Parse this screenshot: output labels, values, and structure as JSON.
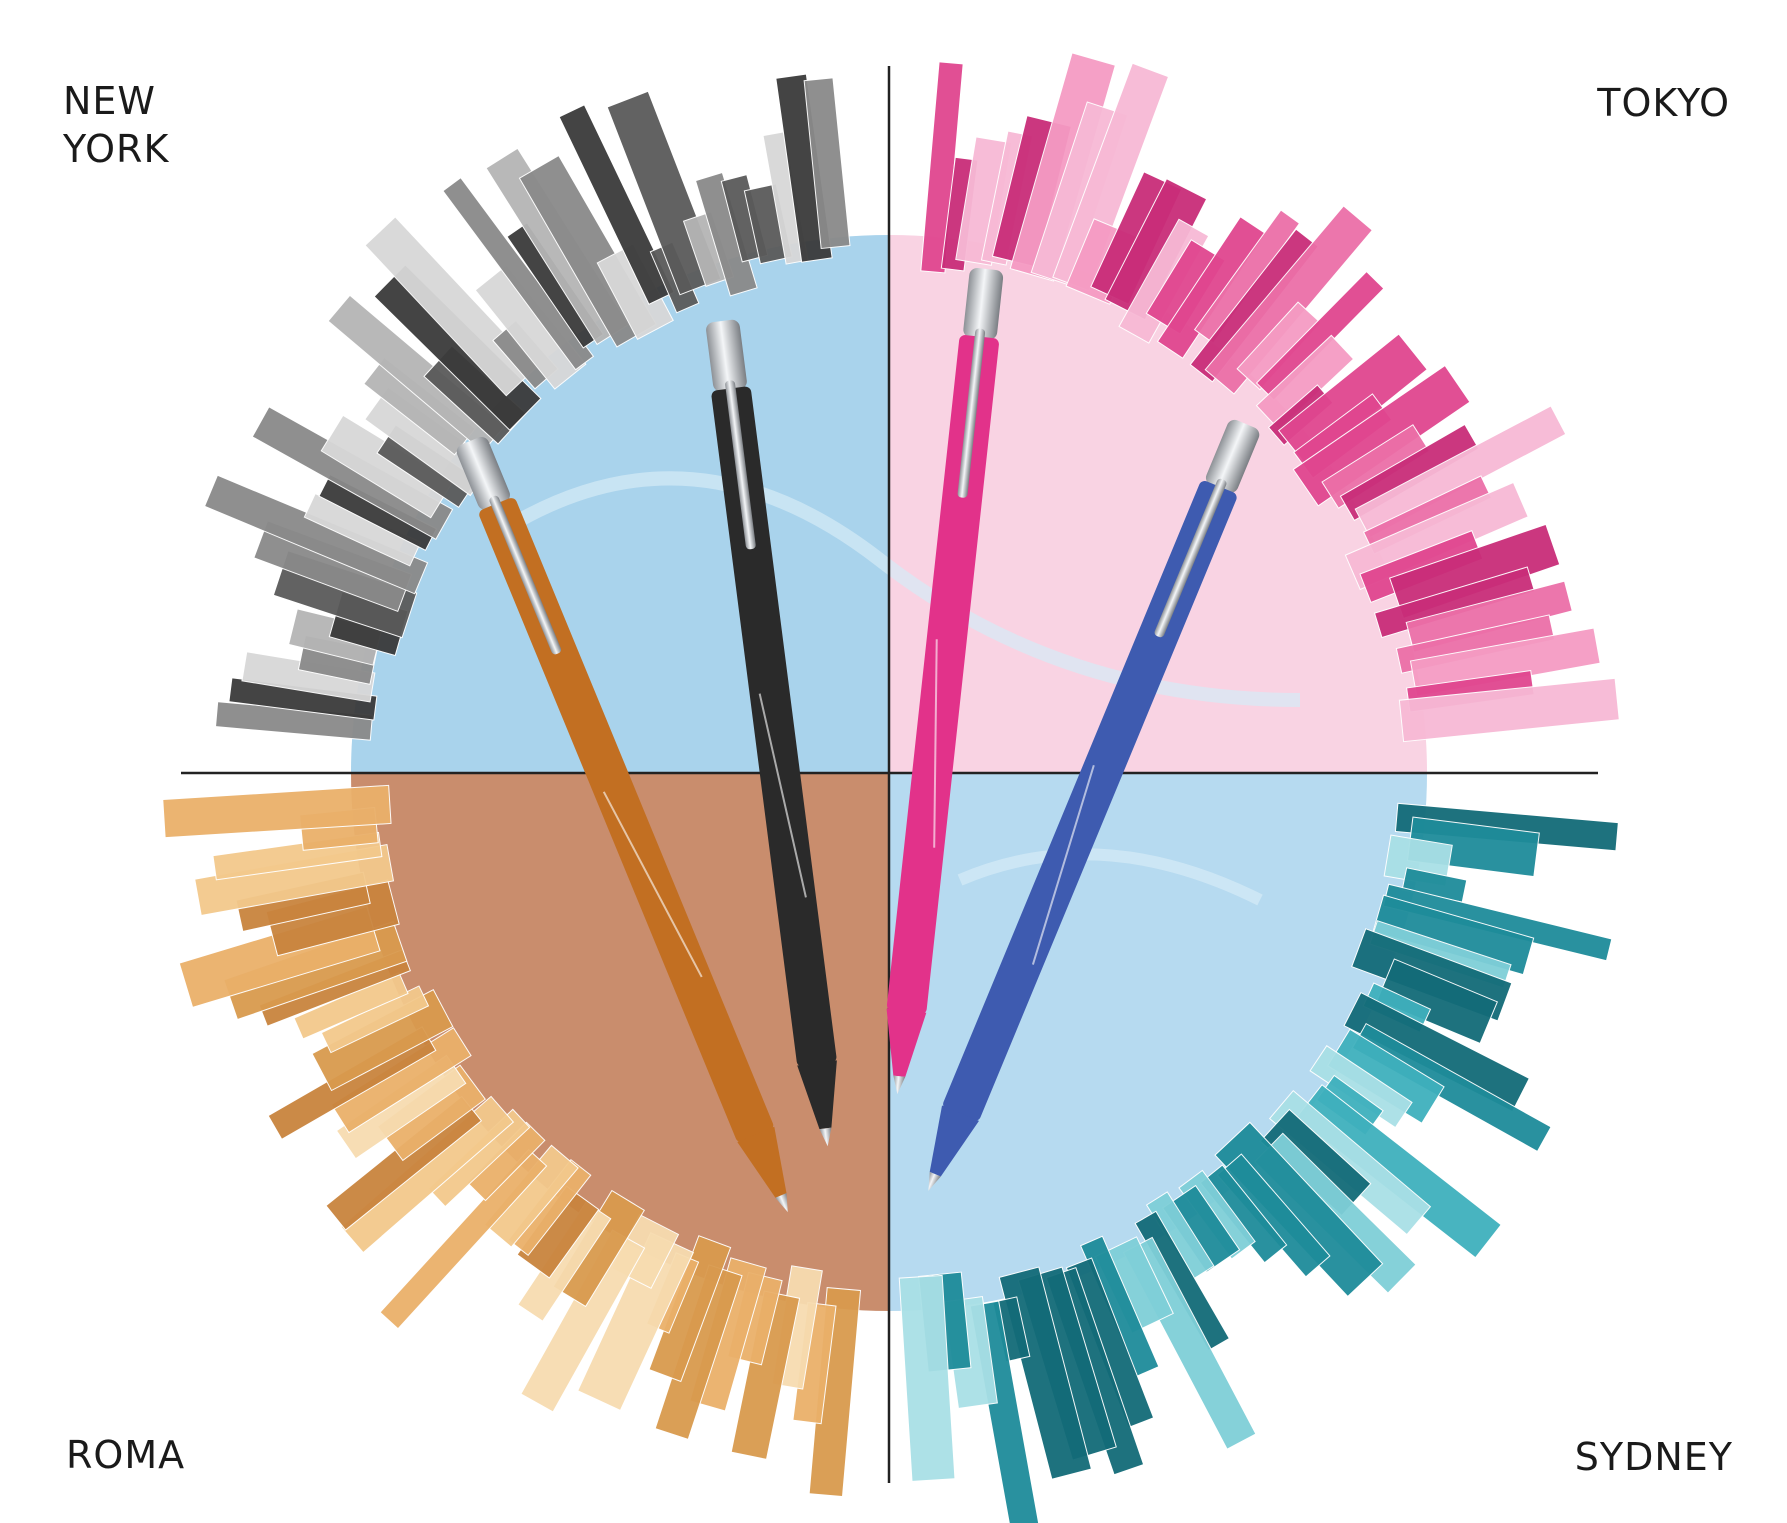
{
  "quadrants": [
    {
      "lines": [
        "NEW",
        "YORK"
      ]
    },
    {
      "lines": [
        "TOKYO"
      ]
    },
    {
      "lines": [
        "ROMA"
      ]
    },
    {
      "lines": [
        "SYDNEY"
      ]
    }
  ]
}
